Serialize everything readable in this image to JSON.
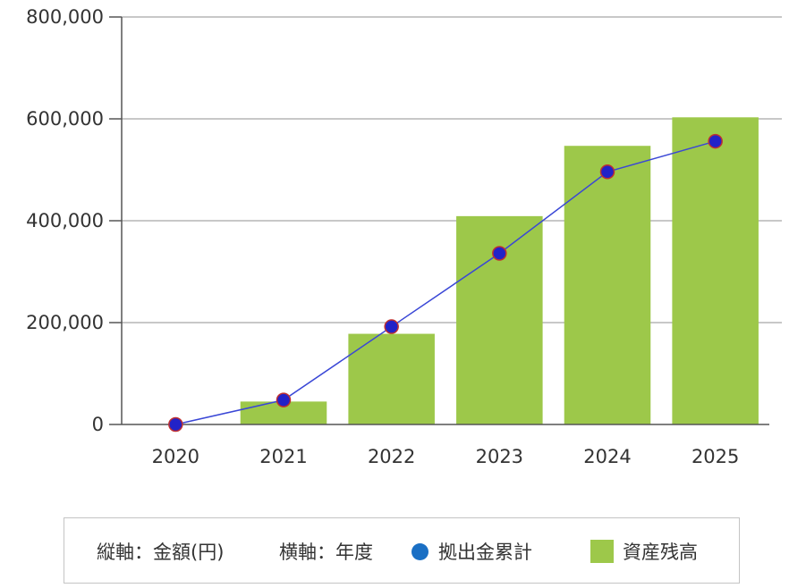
{
  "chart_data": {
    "type": "bar",
    "categories": [
      "2020",
      "2021",
      "2022",
      "2023",
      "2024",
      "2025"
    ],
    "series": [
      {
        "name": "資産残高",
        "type": "bar",
        "color": "#9dc84a",
        "values": [
          0,
          45000,
          178000,
          409000,
          547000,
          603000
        ]
      },
      {
        "name": "拠出金累計",
        "type": "line",
        "color": "#3a47d6",
        "marker_color": "#2222c8",
        "values": [
          0,
          48000,
          192000,
          336000,
          496000,
          556000
        ]
      }
    ],
    "ylim": [
      0,
      800000
    ],
    "yticks": [
      "0",
      "200,000",
      "400,000",
      "600,000",
      "800,000"
    ],
    "ytick_values": [
      0,
      200000,
      400000,
      600000,
      800000
    ],
    "grid": true,
    "legend_position": "bottom"
  },
  "legend": {
    "y_axis_note": "縦軸：金額(円)",
    "x_axis_note": "横軸：年度",
    "line_label": "拠出金累計",
    "bar_label": "資産残高",
    "line_icon_color": "#1a6fc4",
    "bar_icon_color": "#9dc84a"
  }
}
